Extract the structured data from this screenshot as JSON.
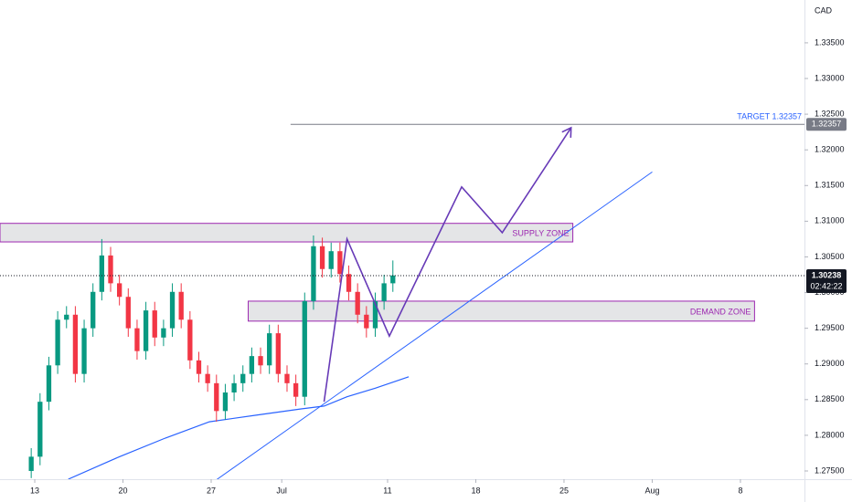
{
  "chart_data": {
    "type": "candlestick",
    "currency": "CAD",
    "x": [
      -0.2,
      0.3,
      0.8,
      1.3,
      1.8,
      2.3,
      2.8,
      3.3,
      3.8,
      4.3,
      4.8,
      5.3,
      5.8,
      6.3,
      6.8,
      7.3,
      7.8,
      8.3,
      8.8,
      9.3,
      9.8,
      10.3,
      10.8,
      11.3,
      11.8,
      12.3,
      12.8,
      13.3,
      13.8,
      14.3,
      14.8,
      15.3,
      15.8,
      16.3,
      16.8,
      17.3,
      17.8,
      18.3,
      18.8,
      19.3,
      19.8,
      20.3
    ],
    "open": [
      1.275,
      1.277,
      1.2847,
      1.2898,
      1.2962,
      1.2969,
      1.2886,
      1.295,
      1.3001,
      1.3052,
      1.3013,
      1.2994,
      1.295,
      1.2918,
      1.2975,
      1.2937,
      1.295,
      1.3001,
      1.2962,
      1.2905,
      1.2886,
      1.2873,
      1.2834,
      1.286,
      1.2873,
      1.2886,
      1.2911,
      1.2898,
      1.2943,
      1.2886,
      1.2873,
      1.2854,
      1.2988,
      1.3065,
      1.3033,
      1.3058,
      1.3026,
      1.3001,
      1.2969,
      1.295,
      1.2988,
      1.3013
    ],
    "high": [
      1.2782,
      1.2859,
      1.291,
      1.2974,
      1.2981,
      1.2981,
      1.2962,
      1.3013,
      1.3075,
      1.3064,
      1.3025,
      1.3006,
      1.2962,
      1.2987,
      1.2987,
      1.2962,
      1.3013,
      1.3013,
      1.2974,
      1.2917,
      1.2898,
      1.2885,
      1.2872,
      1.2885,
      1.2898,
      1.2923,
      1.2923,
      1.2955,
      1.2955,
      1.2898,
      1.2885,
      1.3,
      1.308,
      1.3077,
      1.307,
      1.307,
      1.3038,
      1.3013,
      1.2981,
      1.3,
      1.3025,
      1.3045
    ],
    "low": [
      1.274,
      1.2758,
      1.2835,
      1.2886,
      1.295,
      1.2874,
      1.2874,
      1.2938,
      1.2989,
      1.3001,
      1.2982,
      1.2938,
      1.2906,
      1.2906,
      1.2925,
      1.2925,
      1.2938,
      1.295,
      1.2893,
      1.2874,
      1.2861,
      1.2819,
      1.2822,
      1.2848,
      1.2861,
      1.2874,
      1.2886,
      1.2886,
      1.2874,
      1.2861,
      1.2841,
      1.2842,
      1.2976,
      1.3021,
      1.3021,
      1.3014,
      1.2989,
      1.2957,
      1.2937,
      1.2938,
      1.2976,
      1.3001
    ],
    "close": [
      1.277,
      1.2847,
      1.2898,
      1.2962,
      1.2969,
      1.2886,
      1.295,
      1.3001,
      1.3052,
      1.3013,
      1.2994,
      1.295,
      1.2918,
      1.2975,
      1.2937,
      1.295,
      1.3001,
      1.2962,
      1.2905,
      1.2886,
      1.2873,
      1.2834,
      1.286,
      1.2873,
      1.2886,
      1.2911,
      1.2898,
      1.2943,
      1.2886,
      1.2873,
      1.2854,
      1.2988,
      1.3065,
      1.3033,
      1.3058,
      1.3026,
      1.3001,
      1.2969,
      1.295,
      1.2988,
      1.3013,
      1.3024
    ],
    "up_color": "#089981",
    "down_color": "#f23645",
    "xlim": [
      -1.97,
      43.63
    ],
    "xticks": [
      {
        "value": 0,
        "label": "13"
      },
      {
        "value": 5,
        "label": "20"
      },
      {
        "value": 10,
        "label": "27"
      },
      {
        "value": 14,
        "label": "Jul"
      },
      {
        "value": 20,
        "label": "11"
      },
      {
        "value": 25,
        "label": "18"
      },
      {
        "value": 30,
        "label": "25"
      },
      {
        "value": 35,
        "label": "Aug"
      },
      {
        "value": 40,
        "label": "8"
      }
    ],
    "ylim": [
      1.27385,
      1.341
    ],
    "yticks": [
      {
        "value": 1.275,
        "label": "1.27500"
      },
      {
        "value": 1.28,
        "label": "1.28000"
      },
      {
        "value": 1.285,
        "label": "1.28500"
      },
      {
        "value": 1.29,
        "label": "1.29000"
      },
      {
        "value": 1.295,
        "label": "1.29500"
      },
      {
        "value": 1.3,
        "label": "1.30000"
      },
      {
        "value": 1.305,
        "label": "1.30500"
      },
      {
        "value": 1.31,
        "label": "1.31000"
      },
      {
        "value": 1.315,
        "label": "1.31500"
      },
      {
        "value": 1.32,
        "label": "1.32000"
      },
      {
        "value": 1.325,
        "label": "1.32500"
      },
      {
        "value": 1.33,
        "label": "1.33000"
      },
      {
        "value": 1.335,
        "label": "1.33500"
      }
    ],
    "moving_average": {
      "color": "#2962ff",
      "x": [
        1.9,
        4.8,
        7.4,
        9.9,
        12.5,
        15.1,
        16.4,
        17.7,
        19.3,
        21.2
      ],
      "values": [
        1.27385,
        1.277,
        1.2796,
        1.2819,
        1.2828,
        1.2837,
        1.2841,
        1.2854,
        1.2866,
        1.2882
      ]
    },
    "trendline": {
      "color": "#2962ff",
      "x": [
        10.2,
        35.0
      ],
      "values": [
        1.2736,
        1.3169
      ]
    },
    "projection": {
      "color": "#673ab7",
      "x": [
        16.4,
        17.7,
        20.1,
        24.2,
        26.5,
        30.4
      ],
      "values": [
        1.2847,
        1.3075,
        1.2939,
        1.3148,
        1.3084,
        1.3231
      ]
    },
    "supply_zone": {
      "label": "SUPPLY ZONE",
      "color": "#9c27b0",
      "top": 1.3097,
      "bottom": 1.3071,
      "start": -1.97,
      "end": 30.5
    },
    "demand_zone": {
      "label": "DEMAND ZONE",
      "color": "#9c27b0",
      "top": 1.2988,
      "bottom": 1.296,
      "start": 12.1,
      "end": 40.8
    },
    "target": {
      "label": "TARGET 1.32357",
      "value": 1.32357,
      "value_label": "1.32357",
      "start": 14.5,
      "color": "#2962ff"
    },
    "last_price": {
      "value": 1.30238,
      "label": "1.30238",
      "countdown": "02:42:22"
    }
  }
}
